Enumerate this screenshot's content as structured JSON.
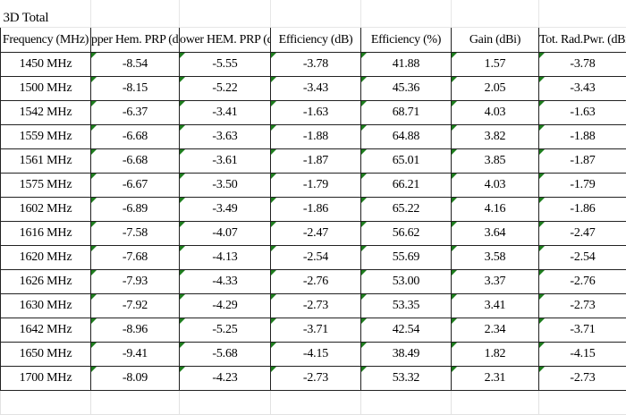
{
  "sheet": {
    "title": "3D Total",
    "headers": [
      "Frequency (MHz)",
      "pper Hem. PRP (dB",
      "ower HEM. PRP (dBi",
      "Efficiency (dB)",
      "Efficiency (%)",
      "Gain (dBi)",
      "Tot. Rad.Pwr. (dBm)"
    ],
    "rows": [
      [
        "1450 MHz",
        "-8.54",
        "-5.55",
        "-3.78",
        "41.88",
        "1.57",
        "-3.78"
      ],
      [
        "1500 MHz",
        "-8.15",
        "-5.22",
        "-3.43",
        "45.36",
        "2.05",
        "-3.43"
      ],
      [
        "1542 MHz",
        "-6.37",
        "-3.41",
        "-1.63",
        "68.71",
        "4.03",
        "-1.63"
      ],
      [
        "1559 MHz",
        "-6.68",
        "-3.63",
        "-1.88",
        "64.88",
        "3.82",
        "-1.88"
      ],
      [
        "1561 MHz",
        "-6.68",
        "-3.61",
        "-1.87",
        "65.01",
        "3.85",
        "-1.87"
      ],
      [
        "1575 MHz",
        "-6.67",
        "-3.50",
        "-1.79",
        "66.21",
        "4.03",
        "-1.79"
      ],
      [
        "1602 MHz",
        "-6.89",
        "-3.49",
        "-1.86",
        "65.22",
        "4.16",
        "-1.86"
      ],
      [
        "1616 MHz",
        "-7.58",
        "-4.07",
        "-2.47",
        "56.62",
        "3.64",
        "-2.47"
      ],
      [
        "1620 MHz",
        "-7.68",
        "-4.13",
        "-2.54",
        "55.69",
        "3.58",
        "-2.54"
      ],
      [
        "1626 MHz",
        "-7.93",
        "-4.33",
        "-2.76",
        "53.00",
        "3.37",
        "-2.76"
      ],
      [
        "1630 MHz",
        "-7.92",
        "-4.29",
        "-2.73",
        "53.35",
        "3.41",
        "-2.73"
      ],
      [
        "1642 MHz",
        "-8.96",
        "-5.25",
        "-3.71",
        "42.54",
        "2.34",
        "-3.71"
      ],
      [
        "1650 MHz",
        "-9.41",
        "-5.68",
        "-4.15",
        "38.49",
        "1.82",
        "-4.15"
      ],
      [
        "1700 MHz",
        "-8.09",
        "-4.23",
        "-2.73",
        "53.32",
        "2.31",
        "-2.73"
      ]
    ],
    "error_flag_color": "#1e7d1e",
    "error_flag_icon": "green-triangle-error-indicator"
  }
}
